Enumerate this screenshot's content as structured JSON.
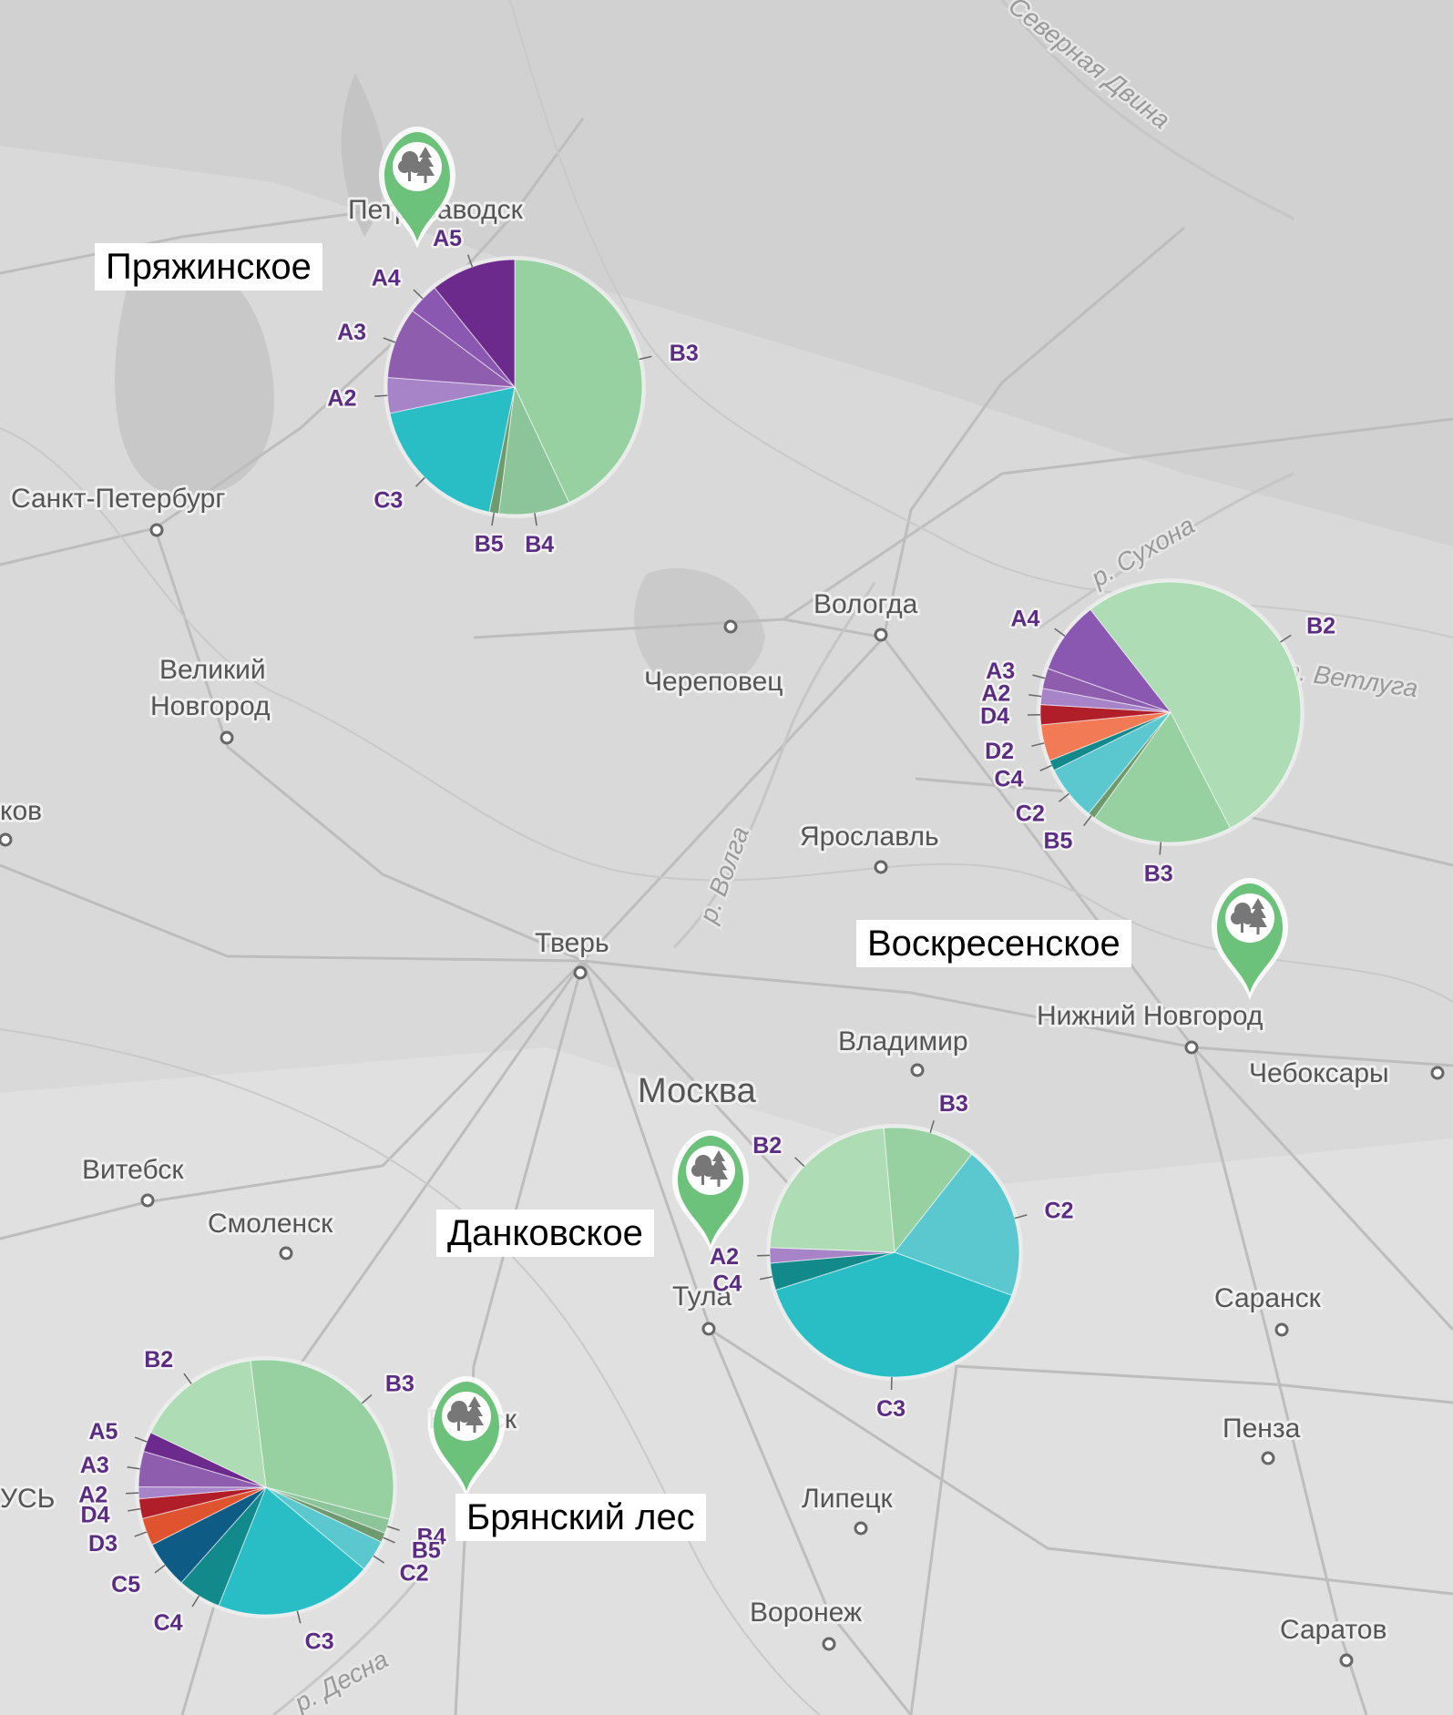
{
  "colors": {
    "A2": "#a784c8",
    "A3": "#8e5dae",
    "A4": "#8a58b0",
    "A5": "#6c2a8c",
    "B2": "#aedcb4",
    "B3": "#97d1a2",
    "B4": "#8cc59a",
    "B5": "#6e9a6e",
    "C2": "#5bc7cf",
    "C3": "#29bec5",
    "C4": "#12898a",
    "C5": "#0e5c86",
    "D2": "#f27a54",
    "D3": "#e0532f",
    "D4": "#b01e2a"
  },
  "cities": [
    {
      "name": "Петрозаводск"
    },
    {
      "name": "Санкт-Петербург"
    },
    {
      "name": "Великий"
    },
    {
      "name": "Новгород"
    },
    {
      "name": "Вологда"
    },
    {
      "name": "Череповец"
    },
    {
      "name": "Ярославль"
    },
    {
      "name": "Тверь"
    },
    {
      "name": "Владимир"
    },
    {
      "name": "Нижний Новгород"
    },
    {
      "name": "Чебоксары"
    },
    {
      "name": "Москва"
    },
    {
      "name": "Витебск"
    },
    {
      "name": "Смоленск"
    },
    {
      "name": "Тула"
    },
    {
      "name": "Саранск"
    },
    {
      "name": "Пенза"
    },
    {
      "name": "Брянск"
    },
    {
      "name": "Липецк"
    },
    {
      "name": "Воронеж"
    },
    {
      "name": "Саратов"
    },
    {
      "name": "ков"
    },
    {
      "name": "УСЬ"
    }
  ],
  "rivers": [
    "Северная Двина",
    "р. Сухона",
    "р. Ветлуга",
    "р. Волга",
    "р. Десна"
  ],
  "sites": [
    {
      "name": "Пряжинское",
      "icon": "forest-pin-icon",
      "slices": [
        {
          "cls": "B3",
          "value": 43.0
        },
        {
          "cls": "B4",
          "value": 9.0
        },
        {
          "cls": "B5",
          "value": 1.2
        },
        {
          "cls": "C3",
          "value": 18.5
        },
        {
          "cls": "A2",
          "value": 4.5
        },
        {
          "cls": "A3",
          "value": 9.0
        },
        {
          "cls": "A4",
          "value": 4.0
        },
        {
          "cls": "A5",
          "value": 10.8
        }
      ]
    },
    {
      "name": "Воскресенское",
      "icon": "forest-pin-icon",
      "slices": [
        {
          "cls": "B2",
          "value": 53.0
        },
        {
          "cls": "B3",
          "value": 17.5
        },
        {
          "cls": "B5",
          "value": 0.9
        },
        {
          "cls": "C2",
          "value": 6.8
        },
        {
          "cls": "C4",
          "value": 1.3
        },
        {
          "cls": "D2",
          "value": 4.5
        },
        {
          "cls": "D4",
          "value": 2.5
        },
        {
          "cls": "A2",
          "value": 2.0
        },
        {
          "cls": "A3",
          "value": 2.5
        },
        {
          "cls": "A4",
          "value": 9.0
        }
      ]
    },
    {
      "name": "Данковское",
      "icon": "forest-pin-icon",
      "slices": [
        {
          "cls": "B3",
          "value": 12.0
        },
        {
          "cls": "C2",
          "value": 20.0
        },
        {
          "cls": "C3",
          "value": 39.5
        },
        {
          "cls": "C4",
          "value": 3.5
        },
        {
          "cls": "A2",
          "value": 2.0
        },
        {
          "cls": "B2",
          "value": 23.0
        }
      ]
    },
    {
      "name": "Брянский лес",
      "icon": "forest-pin-icon",
      "slices": [
        {
          "cls": "B3",
          "value": 31.0
        },
        {
          "cls": "B4",
          "value": 1.8
        },
        {
          "cls": "B5",
          "value": 1.2
        },
        {
          "cls": "C2",
          "value": 4.0
        },
        {
          "cls": "C3",
          "value": 20.0
        },
        {
          "cls": "C4",
          "value": 5.5
        },
        {
          "cls": "C5",
          "value": 6.0
        },
        {
          "cls": "D3",
          "value": 3.5
        },
        {
          "cls": "D4",
          "value": 2.5
        },
        {
          "cls": "A2",
          "value": 1.5
        },
        {
          "cls": "A3",
          "value": 4.5
        },
        {
          "cls": "A5",
          "value": 2.5
        },
        {
          "cls": "B2",
          "value": 16.0
        }
      ]
    }
  ]
}
